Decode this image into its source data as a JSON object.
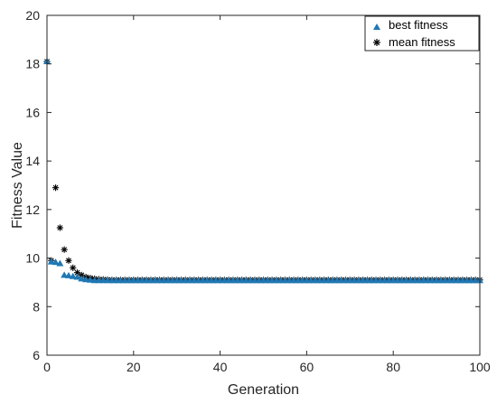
{
  "chart_data": {
    "type": "scatter",
    "xlabel": "Generation",
    "ylabel": "Fitness Value",
    "xlim": [
      0,
      100
    ],
    "ylim": [
      6,
      20
    ],
    "xticks": [
      0,
      20,
      40,
      60,
      80,
      100
    ],
    "yticks": [
      6,
      8,
      10,
      12,
      14,
      16,
      18,
      20
    ],
    "grid": false,
    "legend_position": "top-right",
    "series": [
      {
        "name": "best fitness",
        "marker": "triangle",
        "color": "#1f77b4",
        "x": [
          0,
          1,
          2,
          3,
          4,
          5,
          6,
          7,
          8,
          9,
          10,
          11,
          12,
          13,
          14,
          15,
          16,
          17,
          18,
          19,
          20,
          21,
          22,
          23,
          24,
          25,
          26,
          27,
          28,
          29,
          30,
          31,
          32,
          33,
          34,
          35,
          36,
          37,
          38,
          39,
          40,
          41,
          42,
          43,
          44,
          45,
          46,
          47,
          48,
          49,
          50,
          51,
          52,
          53,
          54,
          55,
          56,
          57,
          58,
          59,
          60,
          61,
          62,
          63,
          64,
          65,
          66,
          67,
          68,
          69,
          70,
          71,
          72,
          73,
          74,
          75,
          76,
          77,
          78,
          79,
          80,
          81,
          82,
          83,
          84,
          85,
          86,
          87,
          88,
          89,
          90,
          91,
          92,
          93,
          94,
          95,
          96,
          97,
          98,
          99,
          100
        ],
        "y": [
          18.1,
          9.85,
          9.83,
          9.78,
          9.3,
          9.28,
          9.25,
          9.22,
          9.15,
          9.12,
          9.1,
          9.08,
          9.08,
          9.08,
          9.08,
          9.08,
          9.08,
          9.08,
          9.08,
          9.08,
          9.08,
          9.08,
          9.08,
          9.08,
          9.08,
          9.08,
          9.08,
          9.08,
          9.08,
          9.08,
          9.08,
          9.08,
          9.08,
          9.08,
          9.08,
          9.08,
          9.08,
          9.08,
          9.08,
          9.08,
          9.08,
          9.08,
          9.08,
          9.08,
          9.08,
          9.08,
          9.08,
          9.08,
          9.08,
          9.08,
          9.08,
          9.08,
          9.08,
          9.08,
          9.08,
          9.08,
          9.08,
          9.08,
          9.08,
          9.08,
          9.08,
          9.08,
          9.08,
          9.08,
          9.08,
          9.08,
          9.08,
          9.08,
          9.08,
          9.08,
          9.08,
          9.08,
          9.08,
          9.08,
          9.08,
          9.08,
          9.08,
          9.08,
          9.08,
          9.08,
          9.08,
          9.08,
          9.08,
          9.08,
          9.08,
          9.08,
          9.08,
          9.08,
          9.08,
          9.08,
          9.08,
          9.08,
          9.08,
          9.08,
          9.08,
          9.08,
          9.08,
          9.08,
          9.08,
          9.08,
          9.08
        ]
      },
      {
        "name": "mean fitness",
        "marker": "asterisk",
        "color": "#000000",
        "x": [
          0,
          1,
          2,
          3,
          4,
          5,
          6,
          7,
          8,
          9,
          10,
          11,
          12,
          13,
          14,
          15,
          16,
          17,
          18,
          19,
          20,
          21,
          22,
          23,
          24,
          25,
          26,
          27,
          28,
          29,
          30,
          31,
          32,
          33,
          34,
          35,
          36,
          37,
          38,
          39,
          40,
          41,
          42,
          43,
          44,
          45,
          46,
          47,
          48,
          49,
          50,
          51,
          52,
          53,
          54,
          55,
          56,
          57,
          58,
          59,
          60,
          61,
          62,
          63,
          64,
          65,
          66,
          67,
          68,
          69,
          70,
          71,
          72,
          73,
          74,
          75,
          76,
          77,
          78,
          79,
          80,
          81,
          82,
          83,
          84,
          85,
          86,
          87,
          88,
          89,
          90,
          91,
          92,
          93,
          94,
          95,
          96,
          97,
          98,
          99,
          100
        ],
        "y": [
          18.1,
          9.9,
          12.9,
          11.25,
          10.35,
          9.9,
          9.6,
          9.4,
          9.3,
          9.22,
          9.18,
          9.15,
          9.13,
          9.12,
          9.11,
          9.1,
          9.1,
          9.1,
          9.1,
          9.1,
          9.1,
          9.1,
          9.1,
          9.1,
          9.1,
          9.1,
          9.1,
          9.1,
          9.1,
          9.1,
          9.1,
          9.1,
          9.1,
          9.1,
          9.1,
          9.1,
          9.1,
          9.1,
          9.1,
          9.1,
          9.1,
          9.1,
          9.1,
          9.1,
          9.1,
          9.1,
          9.1,
          9.1,
          9.1,
          9.1,
          9.1,
          9.1,
          9.1,
          9.1,
          9.1,
          9.1,
          9.1,
          9.1,
          9.1,
          9.1,
          9.1,
          9.1,
          9.1,
          9.1,
          9.1,
          9.1,
          9.1,
          9.1,
          9.1,
          9.1,
          9.1,
          9.1,
          9.1,
          9.1,
          9.1,
          9.1,
          9.1,
          9.1,
          9.1,
          9.1,
          9.1,
          9.1,
          9.1,
          9.1,
          9.1,
          9.1,
          9.1,
          9.1,
          9.1,
          9.1,
          9.1,
          9.1,
          9.1,
          9.1,
          9.1,
          9.1,
          9.1,
          9.1,
          9.1,
          9.1,
          9.1
        ]
      }
    ]
  }
}
